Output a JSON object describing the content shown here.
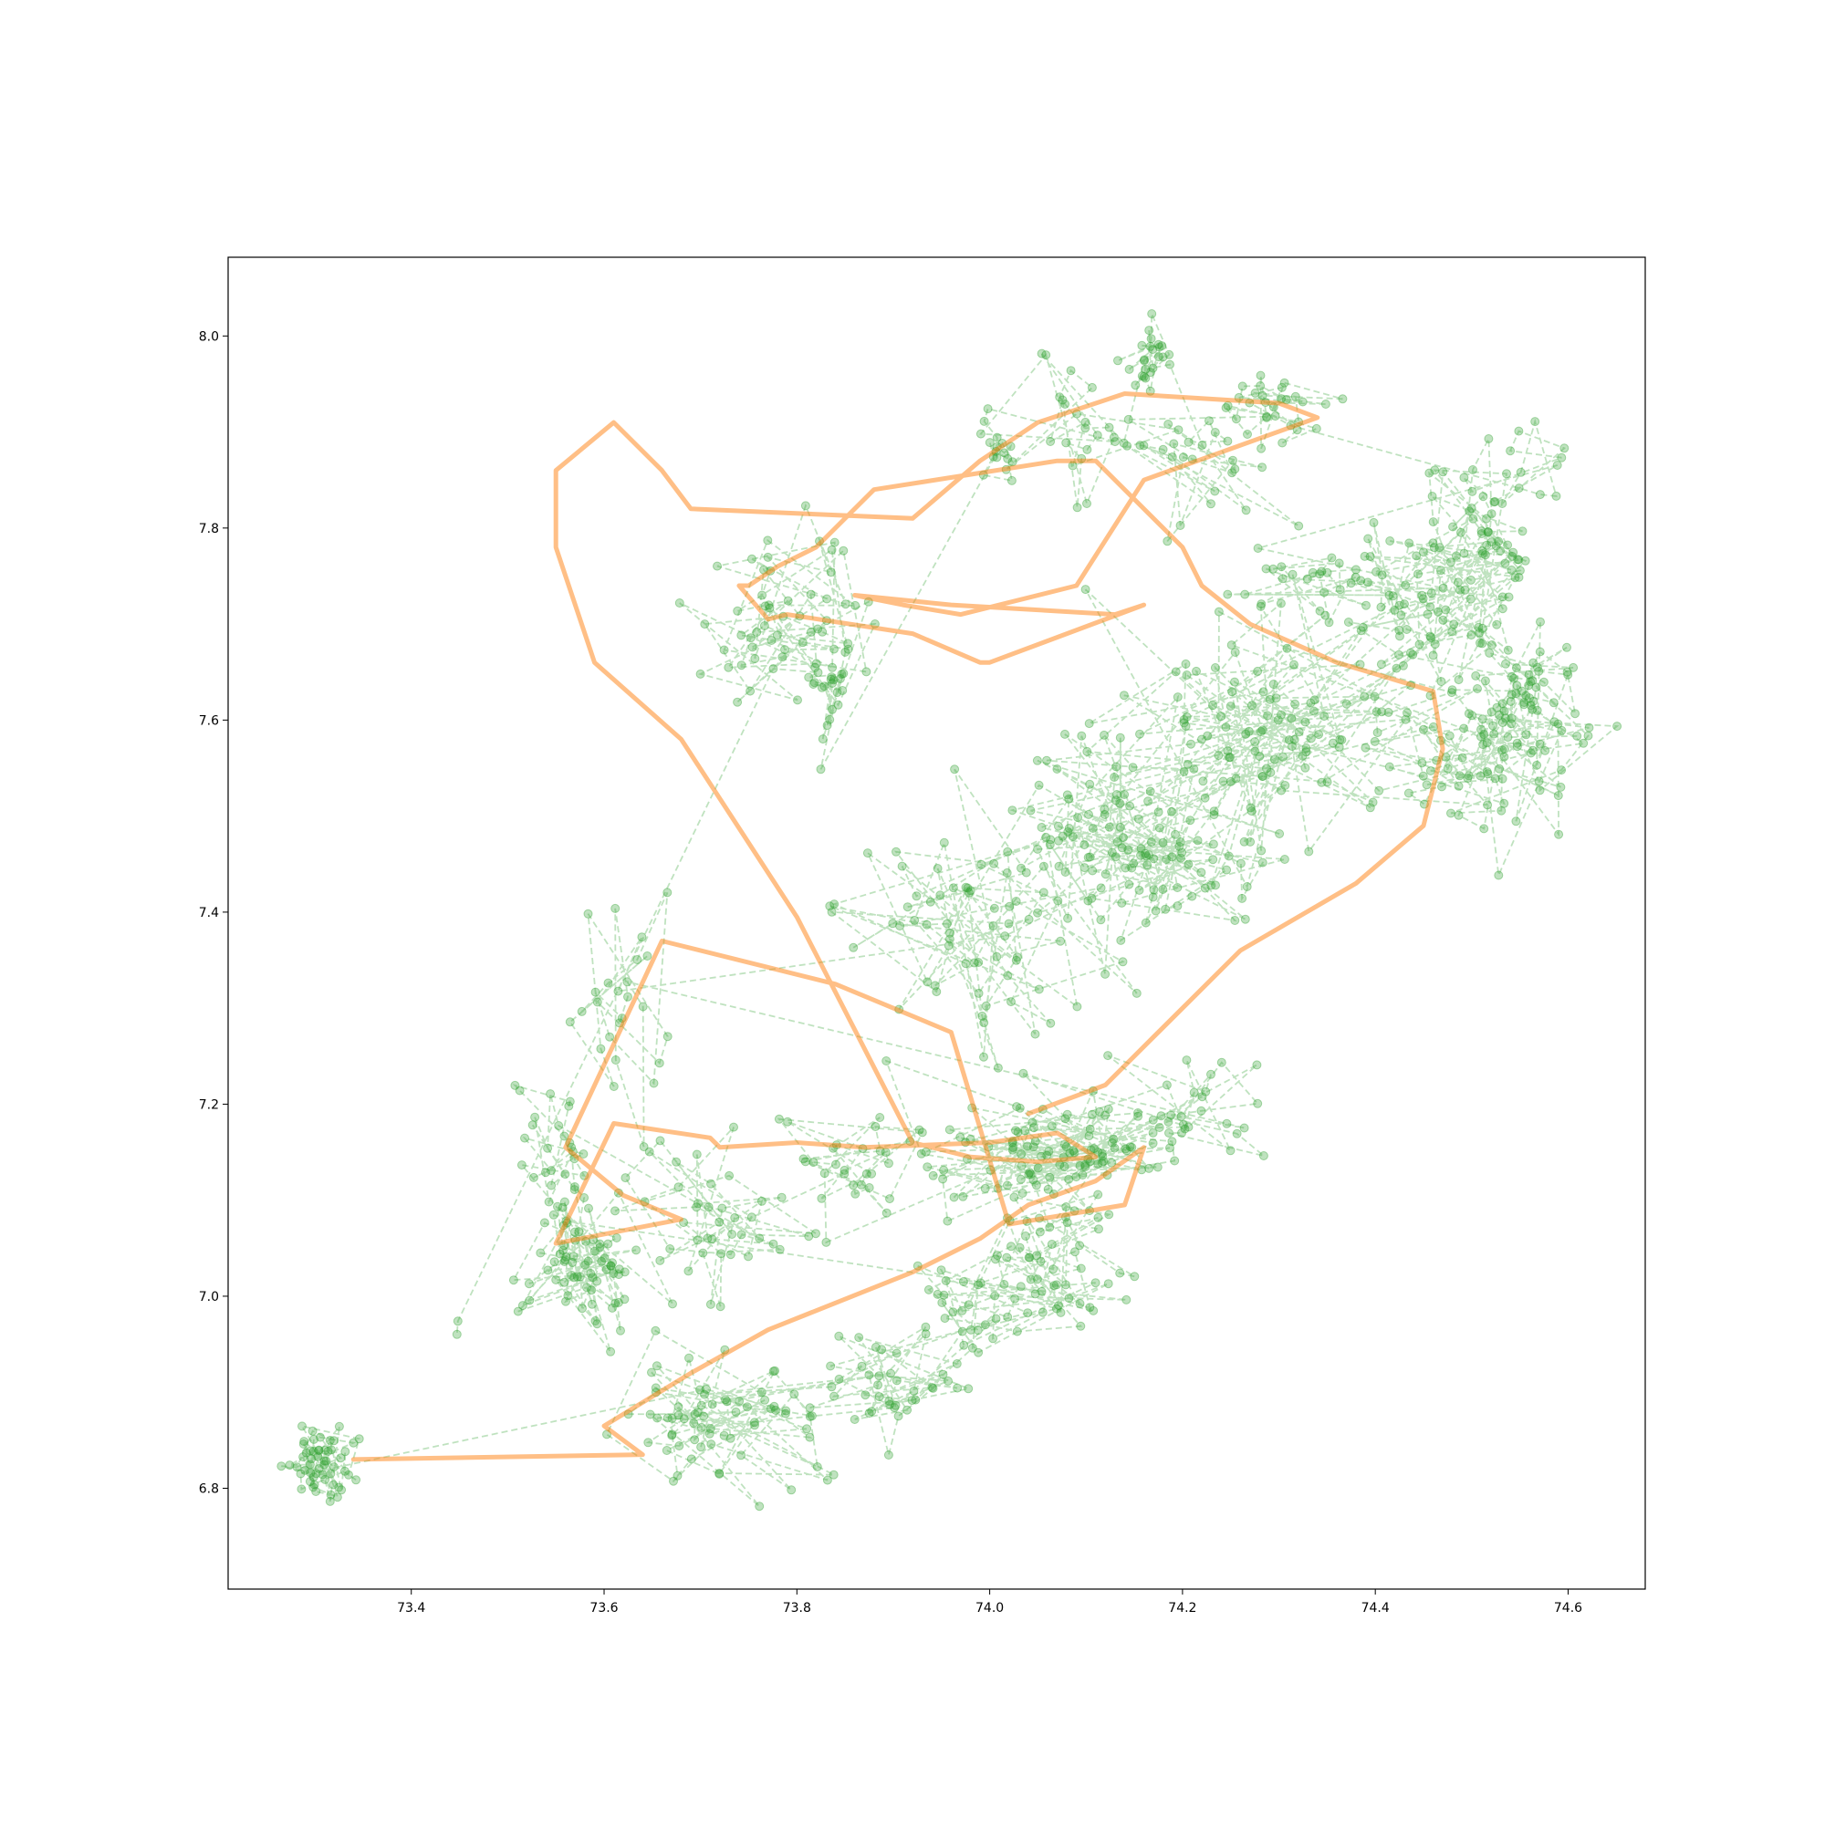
{
  "chart_data": {
    "type": "line",
    "title": "",
    "xlabel": "",
    "ylabel": "",
    "xlim": [
      73.21,
      74.68
    ],
    "ylim": [
      6.695,
      8.082
    ],
    "x_ticks": [
      73.4,
      73.6,
      73.8,
      74.0,
      74.2,
      74.4,
      74.6
    ],
    "y_ticks": [
      6.8,
      7.0,
      7.2,
      7.4,
      7.6,
      7.8,
      8.0
    ],
    "x_tick_labels": [
      "73.4",
      "73.6",
      "73.8",
      "74.0",
      "74.2",
      "74.4",
      "74.6"
    ],
    "y_tick_labels": [
      "6.8",
      "7.0",
      "7.2",
      "7.4",
      "7.6",
      "7.8",
      "8.0"
    ],
    "grid": false,
    "legend": "none",
    "series": [
      {
        "style": "dashed line with circle markers",
        "color": "#2ca02c",
        "alpha": 0.3,
        "clusters": [
          {
            "x": 73.31,
            "y": 6.825,
            "sx": 0.02,
            "sy": 0.02,
            "n": 55
          },
          {
            "x": 73.72,
            "y": 6.87,
            "sx": 0.05,
            "sy": 0.04,
            "n": 70
          },
          {
            "x": 73.9,
            "y": 6.91,
            "sx": 0.05,
            "sy": 0.03,
            "n": 40
          },
          {
            "x": 74.02,
            "y": 7.0,
            "sx": 0.05,
            "sy": 0.04,
            "n": 50
          },
          {
            "x": 74.07,
            "y": 7.05,
            "sx": 0.03,
            "sy": 0.03,
            "n": 30
          },
          {
            "x": 73.58,
            "y": 7.03,
            "sx": 0.03,
            "sy": 0.04,
            "n": 75
          },
          {
            "x": 73.55,
            "y": 7.15,
            "sx": 0.02,
            "sy": 0.04,
            "n": 25
          },
          {
            "x": 73.7,
            "y": 7.08,
            "sx": 0.04,
            "sy": 0.04,
            "n": 40
          },
          {
            "x": 73.87,
            "y": 7.14,
            "sx": 0.04,
            "sy": 0.03,
            "n": 30
          },
          {
            "x": 74.07,
            "y": 7.15,
            "sx": 0.06,
            "sy": 0.03,
            "n": 110
          },
          {
            "x": 74.22,
            "y": 7.19,
            "sx": 0.04,
            "sy": 0.03,
            "n": 25
          },
          {
            "x": 73.62,
            "y": 7.32,
            "sx": 0.03,
            "sy": 0.06,
            "n": 25
          },
          {
            "x": 74.0,
            "y": 7.38,
            "sx": 0.07,
            "sy": 0.06,
            "n": 70
          },
          {
            "x": 74.15,
            "y": 7.48,
            "sx": 0.07,
            "sy": 0.06,
            "n": 120
          },
          {
            "x": 74.3,
            "y": 7.6,
            "sx": 0.09,
            "sy": 0.06,
            "n": 120
          },
          {
            "x": 74.48,
            "y": 7.55,
            "sx": 0.05,
            "sy": 0.03,
            "n": 30
          },
          {
            "x": 74.55,
            "y": 7.58,
            "sx": 0.03,
            "sy": 0.05,
            "n": 60
          },
          {
            "x": 74.57,
            "y": 7.64,
            "sx": 0.02,
            "sy": 0.02,
            "n": 25
          },
          {
            "x": 74.47,
            "y": 7.72,
            "sx": 0.05,
            "sy": 0.05,
            "n": 70
          },
          {
            "x": 74.5,
            "y": 7.78,
            "sx": 0.03,
            "sy": 0.06,
            "n": 40
          },
          {
            "x": 74.35,
            "y": 7.75,
            "sx": 0.05,
            "sy": 0.02,
            "n": 25
          },
          {
            "x": 74.55,
            "y": 7.86,
            "sx": 0.03,
            "sy": 0.03,
            "n": 15
          },
          {
            "x": 74.3,
            "y": 7.93,
            "sx": 0.03,
            "sy": 0.02,
            "n": 30
          },
          {
            "x": 74.22,
            "y": 7.86,
            "sx": 0.05,
            "sy": 0.04,
            "n": 25
          },
          {
            "x": 74.17,
            "y": 7.98,
            "sx": 0.015,
            "sy": 0.02,
            "n": 25
          },
          {
            "x": 74.1,
            "y": 7.9,
            "sx": 0.04,
            "sy": 0.04,
            "n": 25
          },
          {
            "x": 74.01,
            "y": 7.88,
            "sx": 0.015,
            "sy": 0.015,
            "n": 15
          },
          {
            "x": 73.78,
            "y": 7.7,
            "sx": 0.05,
            "sy": 0.05,
            "n": 60
          },
          {
            "x": 73.83,
            "y": 7.63,
            "sx": 0.02,
            "sy": 0.02,
            "n": 20
          },
          {
            "x": 73.45,
            "y": 6.98,
            "sx": 0.01,
            "sy": 0.01,
            "n": 2
          }
        ]
      },
      {
        "style": "solid line",
        "color": "#ff7f0e",
        "alpha": 0.5,
        "x": [
          73.34,
          73.64,
          73.6,
          73.69,
          73.77,
          73.92,
          73.99,
          74.04,
          74.11,
          74.16,
          74.14,
          74.02,
          73.96,
          73.84,
          73.66,
          73.56,
          73.62,
          73.68,
          73.55,
          73.61,
          73.71,
          73.72,
          73.8,
          73.87,
          74.0,
          74.07,
          74.11,
          74.05,
          73.98,
          73.92,
          73.8,
          73.68,
          73.59,
          73.55,
          73.55,
          73.61,
          73.61,
          73.66,
          73.69,
          73.92,
          73.99,
          74.05,
          74.14,
          74.3,
          74.34,
          74.16,
          74.09,
          73.97,
          73.91,
          73.86,
          73.96,
          74.13,
          74.16,
          74.0,
          73.99,
          73.92,
          73.79,
          73.77,
          73.74,
          73.75,
          73.78,
          73.82,
          73.88,
          74.07,
          74.11,
          74.2,
          74.22,
          74.27,
          74.36,
          74.46,
          74.47,
          74.45,
          74.38,
          74.26,
          74.17,
          74.12,
          74.04
        ],
        "y": [
          6.83,
          6.835,
          6.865,
          6.92,
          6.965,
          7.025,
          7.06,
          7.095,
          7.12,
          7.155,
          7.095,
          7.075,
          7.275,
          7.325,
          7.37,
          7.155,
          7.105,
          7.08,
          7.055,
          7.18,
          7.165,
          7.155,
          7.16,
          7.155,
          7.16,
          7.17,
          7.145,
          7.14,
          7.145,
          7.16,
          7.395,
          7.58,
          7.66,
          7.78,
          7.86,
          7.91,
          7.91,
          7.86,
          7.82,
          7.81,
          7.87,
          7.91,
          7.94,
          7.93,
          7.915,
          7.85,
          7.74,
          7.71,
          7.72,
          7.73,
          7.72,
          7.71,
          7.72,
          7.66,
          7.66,
          7.69,
          7.71,
          7.705,
          7.74,
          7.74,
          7.76,
          7.78,
          7.84,
          7.87,
          7.87,
          7.78,
          7.74,
          7.7,
          7.66,
          7.63,
          7.57,
          7.49,
          7.43,
          7.36,
          7.27,
          7.22,
          7.19
        ]
      }
    ]
  }
}
